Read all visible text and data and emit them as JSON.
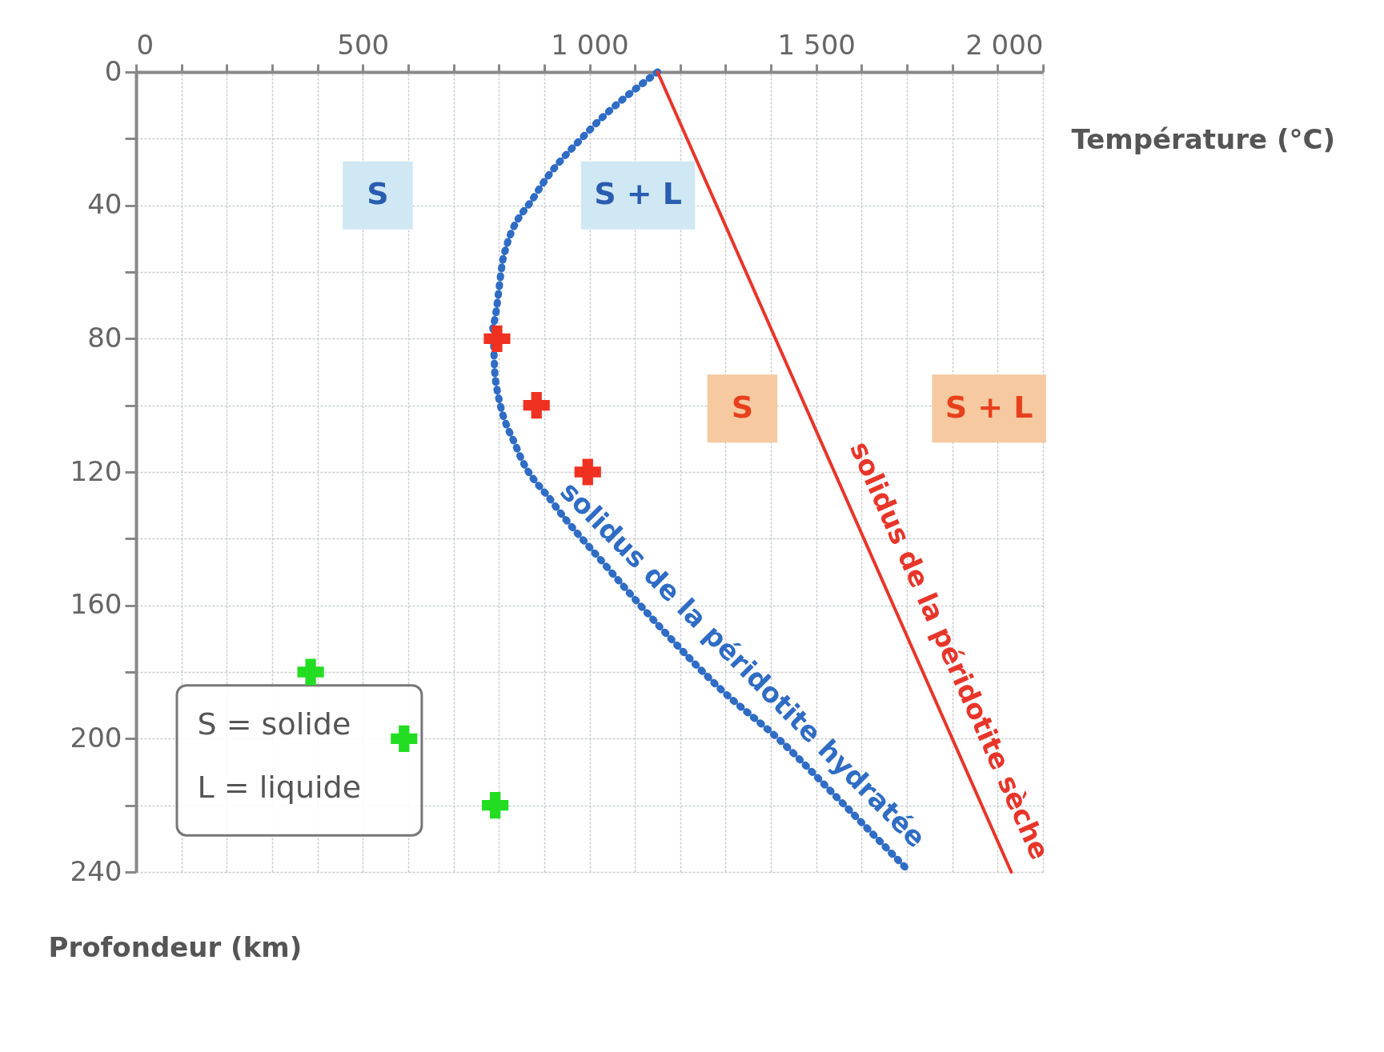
{
  "chart_data": {
    "type": "line",
    "xlabel": "Température (°C)",
    "ylabel": "Profondeur (km)",
    "xlim": [
      0,
      2000
    ],
    "ylim": [
      240,
      0
    ],
    "xticks": [
      0,
      {
        "value": 100,
        "label": null
      },
      {
        "value": 200,
        "label": null
      },
      {
        "value": 300,
        "label": null
      },
      {
        "value": 400,
        "label": null
      },
      500,
      {
        "value": 600,
        "label": null
      },
      {
        "value": 700,
        "label": null
      },
      {
        "value": 800,
        "label": null
      },
      {
        "value": 900,
        "label": null
      },
      {
        "value": 1000,
        "label": "1 000"
      },
      {
        "value": 1100,
        "label": null
      },
      {
        "value": 1200,
        "label": null
      },
      {
        "value": 1300,
        "label": null
      },
      {
        "value": 1400,
        "label": null
      },
      {
        "value": 1500,
        "label": "1 500"
      },
      {
        "value": 1600,
        "label": null
      },
      {
        "value": 1700,
        "label": null
      },
      {
        "value": 1800,
        "label": null
      },
      {
        "value": 1900,
        "label": null
      },
      {
        "value": 2000,
        "label": "2 000"
      }
    ],
    "yticks": [
      0,
      {
        "value": 20,
        "label": null
      },
      40,
      {
        "value": 60,
        "label": null
      },
      80,
      {
        "value": 100,
        "label": null
      },
      120,
      {
        "value": 140,
        "label": null
      },
      160,
      {
        "value": 180,
        "label": null
      },
      200,
      {
        "value": 220,
        "label": null
      },
      240
    ],
    "grid": true,
    "series": [
      {
        "name": "solidus de la péridotite hydratée",
        "line_style": "dotted",
        "color": "#2f6cc4",
        "x": [
          1150,
          996,
          880,
          811,
          786,
          792,
          840,
          918,
          1035,
          1152,
          1288,
          1424,
          1541,
          1706
        ],
        "values": [
          0,
          18,
          37,
          55,
          76,
          92,
          113,
          129,
          148,
          166,
          185,
          201,
          217,
          240
        ]
      },
      {
        "name": "solidus de la péridotite sèche",
        "line_style": "solid",
        "color": "#e8352a",
        "x": [
          1150,
          1930
        ],
        "values": [
          0,
          240
        ]
      },
      {
        "type": "scatter",
        "marker": "cross",
        "color": "#f03020",
        "x": [
          796,
          883,
          996
        ],
        "values": [
          80,
          100,
          120
        ]
      },
      {
        "type": "scatter",
        "marker": "cross",
        "color": "#22dd22",
        "x": [
          385,
          591,
          792
        ],
        "values": [
          180,
          200,
          220
        ]
      }
    ],
    "annotations": [
      "S",
      "S + L",
      "S",
      "S + L",
      "S = solide",
      "L = liquide"
    ]
  }
}
